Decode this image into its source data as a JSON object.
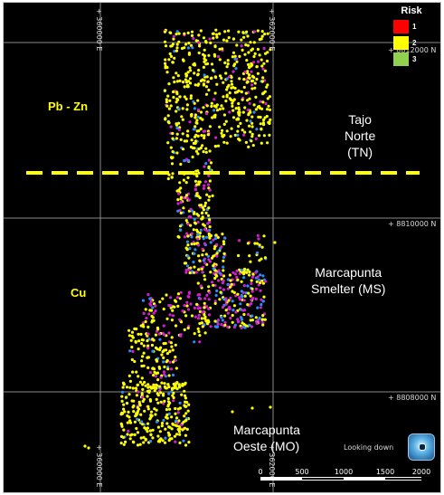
{
  "legend": {
    "title": "Risk",
    "items": [
      {
        "label": "1",
        "color": "#ff0000"
      },
      {
        "label": "2",
        "color": "#ffff00"
      },
      {
        "label": "3",
        "color": "#92d050"
      }
    ]
  },
  "grid_labels": {
    "easting_west_top": "+ 360000 E",
    "easting_east_top": "+ 362000 E",
    "easting_west_bottom": "+ 360000 E",
    "easting_east_bottom": "+ 362000 E",
    "northing_top": "+ 8812000 N",
    "northing_mid": "+ 8810000 N",
    "northing_bottom": "+ 8808000 N"
  },
  "zones": {
    "pbzn": "Pb - Zn",
    "cu": "Cu"
  },
  "places": {
    "tajo_norte": [
      "Tajo",
      "Norte",
      "(TN)"
    ],
    "marcapunta_smelter": [
      "Marcapunta",
      "Smelter (MS)"
    ],
    "marcapunta_oeste": [
      "Marcapunta",
      "Oeste (MO)"
    ]
  },
  "view": {
    "looking": "Looking down"
  },
  "scale": {
    "ticks": [
      "0",
      "500",
      "1000",
      "1500",
      "2000"
    ]
  },
  "colors": {
    "background": "#000000",
    "grid": "#8a8a8a",
    "divider": "#ffff00",
    "point_yellow": "#ffff00",
    "point_magenta": "#d020d0",
    "point_blue": "#2a8cff"
  }
}
